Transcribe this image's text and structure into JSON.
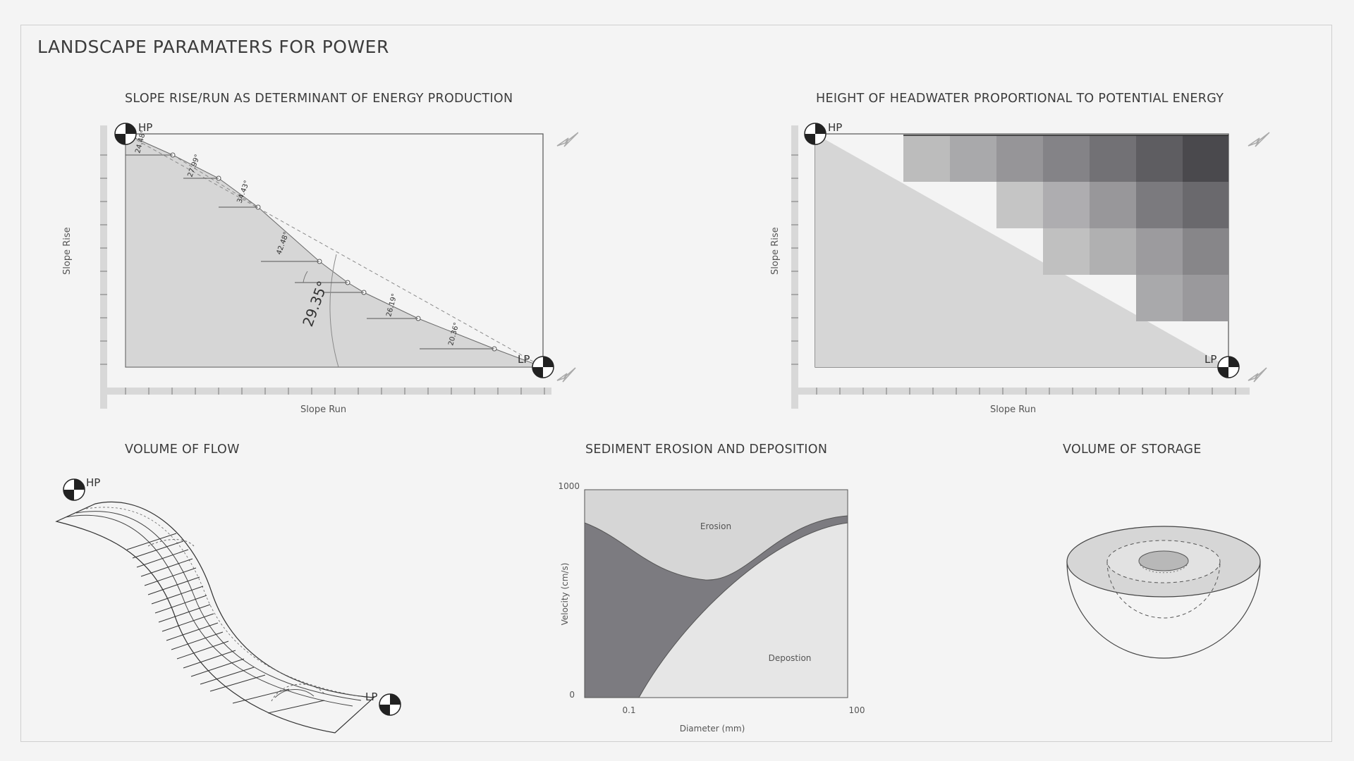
{
  "page": {
    "title": "LANDSCAPE PARAMATERS FOR POWER"
  },
  "slope": {
    "title": "SLOPE RISE/RUN AS DETERMINANT OF ENERGY PRODUCTION",
    "xlabel": "Slope Run",
    "ylabel": "Slope Rise",
    "hp": "HP",
    "lp": "LP",
    "angles": [
      "24.48°",
      "27.99°",
      "34.43°",
      "42.48°",
      "26.19°",
      "20.36°"
    ],
    "overall_angle": "29.35°"
  },
  "headwater": {
    "title": "HEIGHT OF HEADWATER PROPORTIONAL TO POTENTIAL ENERGY",
    "xlabel": "Slope Run",
    "ylabel": "Slope Rise",
    "hp": "HP",
    "lp": "LP"
  },
  "flow": {
    "title": "VOLUME OF FLOW",
    "hp": "HP",
    "lp": "LP"
  },
  "sediment": {
    "title": "SEDIMENT EROSION AND DEPOSITION",
    "xlabel": "Diameter (mm)",
    "ylabel": "Velocity (cm/s)",
    "y_max": "1000",
    "y_min": "0",
    "x_min": "0.1",
    "x_max": "100",
    "region_top": "Erosion",
    "region_bottom": "Depostion"
  },
  "storage": {
    "title": "VOLUME OF STORAGE"
  },
  "colors": {
    "fill_light": "#d6d6d6",
    "fill_dark": "#7c7b80",
    "line": "#3a3a3a"
  }
}
